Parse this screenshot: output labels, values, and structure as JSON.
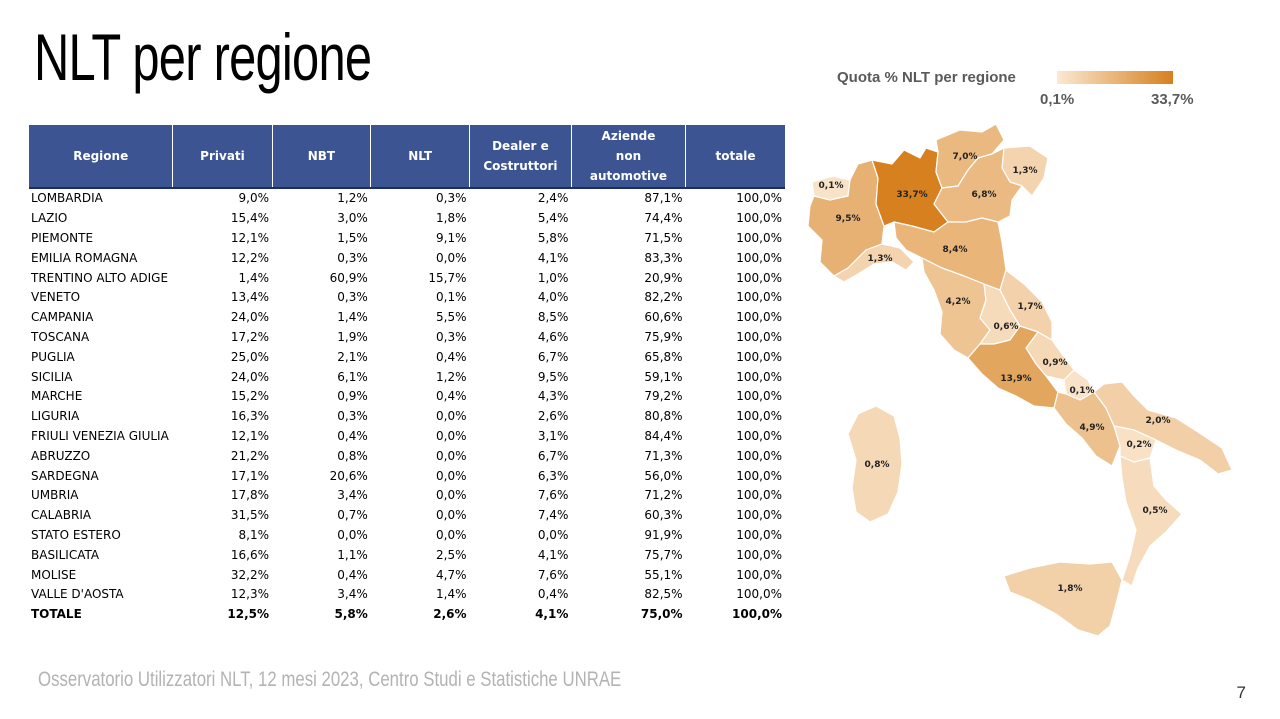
{
  "title": "NLT per regione",
  "table": {
    "headers": [
      "Regione",
      "Privati",
      "NBT",
      "NLT",
      "Dealer e Costruttori",
      "Aziende non automotive",
      "totale"
    ],
    "rows": [
      [
        "LOMBARDIA",
        "9,0%",
        "1,2%",
        "0,3%",
        "2,4%",
        "87,1%",
        "100,0%"
      ],
      [
        "LAZIO",
        "15,4%",
        "3,0%",
        "1,8%",
        "5,4%",
        "74,4%",
        "100,0%"
      ],
      [
        "PIEMONTE",
        "12,1%",
        "1,5%",
        "9,1%",
        "5,8%",
        "71,5%",
        "100,0%"
      ],
      [
        "EMILIA ROMAGNA",
        "12,2%",
        "0,3%",
        "0,0%",
        "4,1%",
        "83,3%",
        "100,0%"
      ],
      [
        "TRENTINO ALTO ADIGE",
        "1,4%",
        "60,9%",
        "15,7%",
        "1,0%",
        "20,9%",
        "100,0%"
      ],
      [
        "VENETO",
        "13,4%",
        "0,3%",
        "0,1%",
        "4,0%",
        "82,2%",
        "100,0%"
      ],
      [
        "CAMPANIA",
        "24,0%",
        "1,4%",
        "5,5%",
        "8,5%",
        "60,6%",
        "100,0%"
      ],
      [
        "TOSCANA",
        "17,2%",
        "1,9%",
        "0,3%",
        "4,6%",
        "75,9%",
        "100,0%"
      ],
      [
        "PUGLIA",
        "25,0%",
        "2,1%",
        "0,4%",
        "6,7%",
        "65,8%",
        "100,0%"
      ],
      [
        "SICILIA",
        "24,0%",
        "6,1%",
        "1,2%",
        "9,5%",
        "59,1%",
        "100,0%"
      ],
      [
        "MARCHE",
        "15,2%",
        "0,9%",
        "0,4%",
        "4,3%",
        "79,2%",
        "100,0%"
      ],
      [
        "LIGURIA",
        "16,3%",
        "0,3%",
        "0,0%",
        "2,6%",
        "80,8%",
        "100,0%"
      ],
      [
        "FRIULI VENEZIA GIULIA",
        "12,1%",
        "0,4%",
        "0,0%",
        "3,1%",
        "84,4%",
        "100,0%"
      ],
      [
        "ABRUZZO",
        "21,2%",
        "0,8%",
        "0,0%",
        "6,7%",
        "71,3%",
        "100,0%"
      ],
      [
        "SARDEGNA",
        "17,1%",
        "20,6%",
        "0,0%",
        "6,3%",
        "56,0%",
        "100,0%"
      ],
      [
        "UMBRIA",
        "17,8%",
        "3,4%",
        "0,0%",
        "7,6%",
        "71,2%",
        "100,0%"
      ],
      [
        "CALABRIA",
        "31,5%",
        "0,7%",
        "0,0%",
        "7,4%",
        "60,3%",
        "100,0%"
      ],
      [
        "STATO ESTERO",
        "8,1%",
        "0,0%",
        "0,0%",
        "0,0%",
        "91,9%",
        "100,0%"
      ],
      [
        "BASILICATA",
        "16,6%",
        "1,1%",
        "2,5%",
        "4,1%",
        "75,7%",
        "100,0%"
      ],
      [
        "MOLISE",
        "32,2%",
        "0,4%",
        "4,7%",
        "7,6%",
        "55,1%",
        "100,0%"
      ],
      [
        "VALLE D'AOSTA",
        "12,3%",
        "3,4%",
        "1,4%",
        "0,4%",
        "82,5%",
        "100,0%"
      ]
    ],
    "total": [
      "TOTALE",
      "12,5%",
      "5,8%",
      "2,6%",
      "4,1%",
      "75,0%",
      "100,0%"
    ]
  },
  "map": {
    "legend_title": "Quota % NLT per regione",
    "legend_min": "0,1%",
    "legend_max": "33,7%",
    "color_low": "#fbe9d2",
    "color_high": "#d6801f",
    "regions": [
      {
        "name": "Valle d'Aosta",
        "label": "0,1%",
        "share": 0.1
      },
      {
        "name": "Piemonte",
        "label": "9,5%",
        "share": 9.5
      },
      {
        "name": "Liguria",
        "label": "1,3%",
        "share": 1.3
      },
      {
        "name": "Lombardia",
        "label": "33,7%",
        "share": 33.7
      },
      {
        "name": "Trentino Alto Adige",
        "label": "7,0%",
        "share": 7.0
      },
      {
        "name": "Friuli Venezia Giulia",
        "label": "1,3%",
        "share": 1.3
      },
      {
        "name": "Veneto",
        "label": "6,8%",
        "share": 6.8
      },
      {
        "name": "Emilia Romagna",
        "label": "8,4%",
        "share": 8.4
      },
      {
        "name": "Toscana",
        "label": "4,2%",
        "share": 4.2
      },
      {
        "name": "Marche",
        "label": "1,7%",
        "share": 1.7
      },
      {
        "name": "Umbria",
        "label": "0,6%",
        "share": 0.6
      },
      {
        "name": "Abruzzo",
        "label": "0,9%",
        "share": 0.9
      },
      {
        "name": "Lazio",
        "label": "13,9%",
        "share": 13.9
      },
      {
        "name": "Molise",
        "label": "0,1%",
        "share": 0.1
      },
      {
        "name": "Campania",
        "label": "4,9%",
        "share": 4.9
      },
      {
        "name": "Puglia",
        "label": "2,0%",
        "share": 2.0
      },
      {
        "name": "Basilicata",
        "label": "0,2%",
        "share": 0.2
      },
      {
        "name": "Calabria",
        "label": "0,5%",
        "share": 0.5
      },
      {
        "name": "Sicilia",
        "label": "1,8%",
        "share": 1.8
      },
      {
        "name": "Sardegna",
        "label": "0,8%",
        "share": 0.8
      }
    ]
  },
  "footer": "Osservatorio Utilizzatori NLT, 12 mesi 2023, Centro Studi e Statistiche UNRAE",
  "page_number": "7"
}
